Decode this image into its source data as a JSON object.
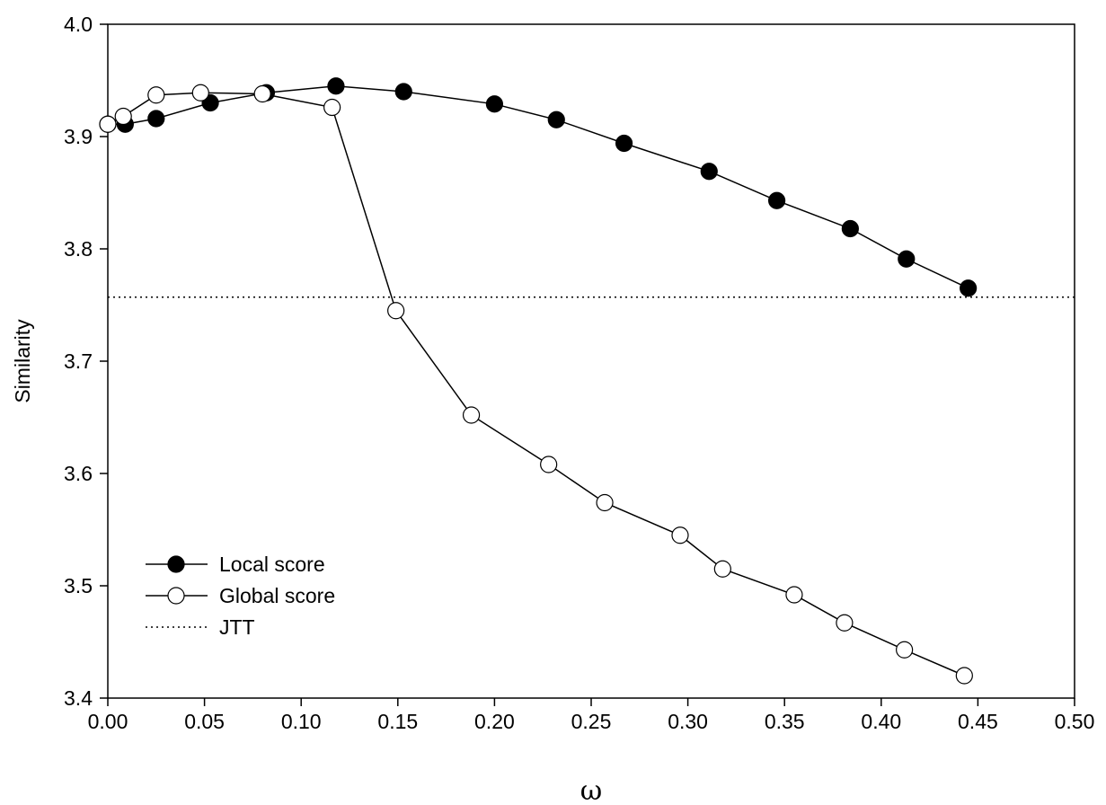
{
  "chart_data": {
    "type": "line",
    "title": "",
    "xlabel": "ω",
    "ylabel": "Similarity",
    "xlim": [
      0.0,
      0.5
    ],
    "ylim": [
      3.4,
      4.0
    ],
    "x_ticks": [
      "0.00",
      "0.05",
      "0.10",
      "0.15",
      "0.20",
      "0.25",
      "0.30",
      "0.35",
      "0.40",
      "0.45",
      "0.50"
    ],
    "y_ticks": [
      "3.4",
      "3.5",
      "3.6",
      "3.7",
      "3.8",
      "3.9",
      "4.0"
    ],
    "grid": false,
    "legend_position": "bottom-left",
    "series": [
      {
        "name": "Local score",
        "marker": "filled-circle",
        "line_style": "solid",
        "x": [
          0.0,
          0.009,
          0.025,
          0.053,
          0.082,
          0.118,
          0.153,
          0.2,
          0.232,
          0.267,
          0.311,
          0.346,
          0.384,
          0.413,
          0.445
        ],
        "y": [
          3.911,
          3.911,
          3.916,
          3.93,
          3.939,
          3.945,
          3.94,
          3.929,
          3.915,
          3.894,
          3.869,
          3.843,
          3.818,
          3.791,
          3.765
        ]
      },
      {
        "name": "Global score",
        "marker": "open-circle",
        "line_style": "solid",
        "x": [
          0.0,
          0.008,
          0.025,
          0.048,
          0.08,
          0.116,
          0.149,
          0.188,
          0.228,
          0.257,
          0.296,
          0.318,
          0.355,
          0.381,
          0.412,
          0.443
        ],
        "y": [
          3.911,
          3.918,
          3.937,
          3.939,
          3.938,
          3.926,
          3.745,
          3.652,
          3.608,
          3.574,
          3.545,
          3.515,
          3.492,
          3.467,
          3.443,
          3.42
        ]
      },
      {
        "name": "JTT",
        "marker": "none",
        "line_style": "dotted",
        "y_constant": 3.757
      }
    ]
  },
  "colors": {
    "line": "#000000",
    "filled_marker": "#000000",
    "open_marker_fill": "#ffffff"
  }
}
